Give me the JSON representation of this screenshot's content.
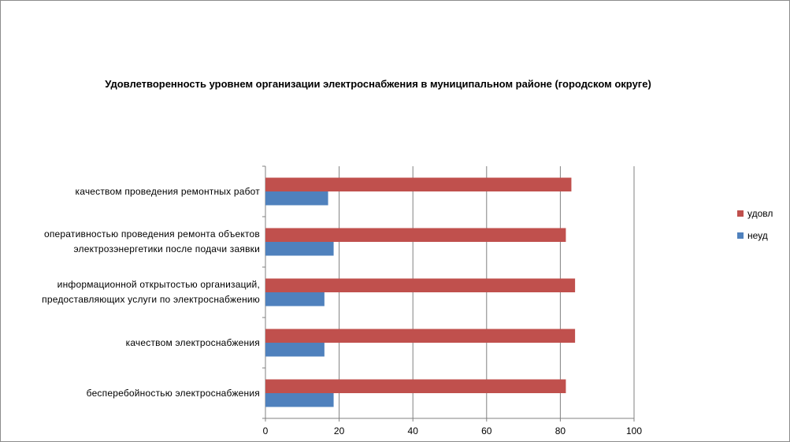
{
  "chart_data": {
    "type": "bar",
    "orientation": "horizontal",
    "title": "Удовлетворенность уровнем организации электроснабжения в муниципальном районе (городском округе)",
    "categories": [
      "качеством проведения ремонтных работ",
      "оперативностью проведения ремонта объектов электрозэнергетики после подачи заявки",
      "информационной открытостью организаций, предоставляющих услуги по электроснабжению",
      "качеством электроснабжения",
      "бесперебойностью электроснабжения"
    ],
    "category_lines": [
      [
        "качеством проведения ремонтных работ"
      ],
      [
        "оперативностью проведения ремонта объектов",
        "электрозэнергетики после подачи заявки"
      ],
      [
        "информационной открытостью организаций,",
        "предоставляющих услуги по электроснабжению"
      ],
      [
        "качеством электроснабжения"
      ],
      [
        "бесперебойностью электроснабжения"
      ]
    ],
    "series": [
      {
        "name": "удовл",
        "color": "#c0504d",
        "values": [
          83,
          81.5,
          84,
          84,
          81.5
        ]
      },
      {
        "name": "неуд",
        "color": "#4f81bd",
        "values": [
          17,
          18.5,
          16,
          16,
          18.5
        ]
      }
    ],
    "xlim": [
      0,
      100
    ],
    "xticks": [
      0,
      20,
      40,
      60,
      80,
      100
    ],
    "grid": true,
    "legend_position": "right"
  }
}
